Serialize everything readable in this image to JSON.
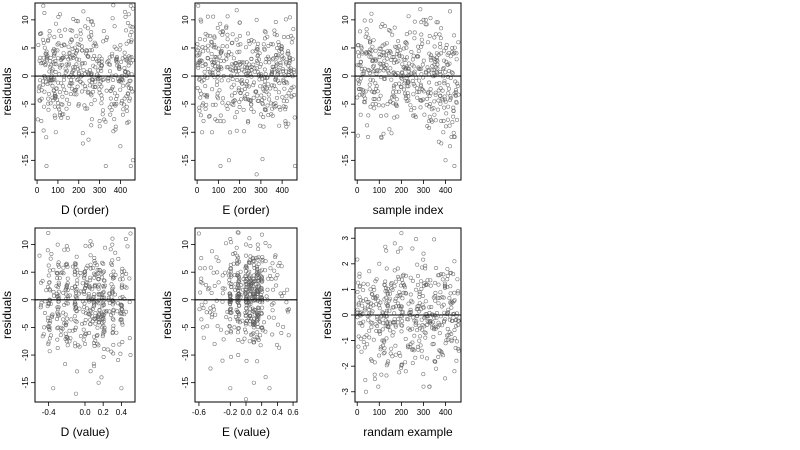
{
  "chart_data": [
    {
      "type": "scatter",
      "xlabel": "D (order)",
      "ylabel": "residuals",
      "xlim": [
        -10,
        470
      ],
      "ylim": [
        -18.5,
        13
      ],
      "xticks": [
        0,
        100,
        200,
        300,
        400
      ],
      "yticks": [
        -15,
        -10,
        -5,
        0,
        5,
        10
      ],
      "hline": 0,
      "n_points": 460,
      "points": [
        [
          30,
          12.5
        ],
        [
          15,
          7.5
        ],
        [
          60,
          8.0
        ],
        [
          110,
          11.0
        ],
        [
          160,
          6.0
        ],
        [
          210,
          6.5
        ],
        [
          250,
          7.0
        ],
        [
          320,
          8.0
        ],
        [
          400,
          5.5
        ],
        [
          440,
          11.0
        ],
        [
          450,
          12.5
        ],
        [
          460,
          12.0
        ],
        [
          20,
          -8.0
        ],
        [
          45,
          -16.0
        ],
        [
          55,
          -6.0
        ],
        [
          90,
          -10.0
        ],
        [
          110,
          -7.0
        ],
        [
          140,
          -3.0
        ],
        [
          200,
          -5.0
        ],
        [
          220,
          -12.0
        ],
        [
          260,
          -5.0
        ],
        [
          300,
          -8.0
        ],
        [
          330,
          -16.0
        ],
        [
          370,
          -5.0
        ],
        [
          400,
          -12.5
        ],
        [
          420,
          -4.0
        ],
        [
          450,
          -16.0
        ],
        [
          460,
          -15.0
        ],
        [
          80,
          -2.5
        ],
        [
          150,
          3.0
        ],
        [
          300,
          3.5
        ],
        [
          350,
          2.0
        ]
      ]
    },
    {
      "type": "scatter",
      "xlabel": "E (order)",
      "ylabel": "residuals",
      "xlim": [
        -10,
        470
      ],
      "ylim": [
        -18.5,
        13
      ],
      "xticks": [
        0,
        100,
        200,
        300,
        400
      ],
      "yticks": [
        -15,
        -10,
        -5,
        0,
        5,
        10
      ],
      "hline": 0,
      "n_points": 460,
      "points": [
        [
          5,
          12.5
        ],
        [
          40,
          7.5
        ],
        [
          70,
          6.0
        ],
        [
          120,
          8.0
        ],
        [
          200,
          9.5
        ],
        [
          280,
          10.0
        ],
        [
          330,
          7.0
        ],
        [
          400,
          3.5
        ],
        [
          430,
          4.0
        ],
        [
          450,
          3.0
        ],
        [
          30,
          -8.0
        ],
        [
          70,
          -10.0
        ],
        [
          110,
          -16.0
        ],
        [
          150,
          -15.0
        ],
        [
          200,
          -5.5
        ],
        [
          240,
          -8.0
        ],
        [
          280,
          -17.5
        ],
        [
          320,
          -6.0
        ],
        [
          360,
          -5.0
        ],
        [
          420,
          -9.0
        ],
        [
          460,
          -16.0
        ],
        [
          100,
          0.5
        ],
        [
          200,
          2.5
        ],
        [
          300,
          0.0
        ]
      ]
    },
    {
      "type": "scatter",
      "xlabel": "sample index",
      "ylabel": "residuals",
      "xlim": [
        -10,
        470
      ],
      "ylim": [
        -18.5,
        13
      ],
      "xticks": [
        0,
        100,
        200,
        300,
        400
      ],
      "yticks": [
        -15,
        -10,
        -5,
        0,
        5,
        10
      ],
      "hline": 0,
      "n_points": 460,
      "points": [
        [
          20,
          5.0
        ],
        [
          40,
          4.0
        ],
        [
          80,
          3.0
        ],
        [
          150,
          8.0
        ],
        [
          220,
          6.0
        ],
        [
          300,
          10.0
        ],
        [
          380,
          8.5
        ],
        [
          420,
          11.5
        ],
        [
          450,
          3.0
        ],
        [
          30,
          -3.5
        ],
        [
          50,
          -7.0
        ],
        [
          70,
          -5.0
        ],
        [
          110,
          -11.0
        ],
        [
          150,
          -4.5
        ],
        [
          200,
          -2.0
        ],
        [
          260,
          -7.0
        ],
        [
          330,
          -5.0
        ],
        [
          380,
          -8.0
        ],
        [
          390,
          -10.0
        ],
        [
          400,
          -15.0
        ],
        [
          420,
          -12.5
        ],
        [
          440,
          -16.0
        ],
        [
          30,
          0.5
        ],
        [
          120,
          1.0
        ],
        [
          250,
          2.0
        ],
        [
          350,
          0.5
        ]
      ]
    },
    {
      "type": "scatter",
      "xlabel": "D (value)",
      "ylabel": "residuals",
      "xlim": [
        -0.55,
        0.55
      ],
      "ylim": [
        -18.5,
        13
      ],
      "xticks": [
        -0.4,
        0.0,
        0.2,
        0.4
      ],
      "xticklabels": [
        "-0.4",
        "0.0",
        "0.2",
        "0.4"
      ],
      "yticks": [
        -15,
        -10,
        -5,
        0,
        5,
        10
      ],
      "hline": 0,
      "n_points": 460,
      "points": [
        [
          -0.5,
          8.0
        ],
        [
          -0.3,
          10.0
        ],
        [
          -0.25,
          5.0
        ],
        [
          -0.1,
          6.5
        ],
        [
          0.0,
          5.0
        ],
        [
          0.1,
          4.0
        ],
        [
          0.2,
          6.5
        ],
        [
          0.3,
          10.0
        ],
        [
          0.45,
          11.0
        ],
        [
          0.5,
          12.0
        ],
        [
          -0.45,
          -5.0
        ],
        [
          -0.35,
          -16.0
        ],
        [
          -0.2,
          -7.5
        ],
        [
          -0.1,
          -17.0
        ],
        [
          0.0,
          -8.0
        ],
        [
          0.1,
          -12.0
        ],
        [
          0.15,
          -15.0
        ],
        [
          0.25,
          -9.0
        ],
        [
          0.4,
          -16.0
        ],
        [
          0.5,
          -10.0
        ],
        [
          -0.05,
          1.5
        ],
        [
          0.05,
          2.5
        ],
        [
          0.1,
          0.5
        ],
        [
          0.15,
          2.0
        ],
        [
          0.2,
          -1.0
        ]
      ]
    },
    {
      "type": "scatter",
      "xlabel": "E (value)",
      "ylabel": "residuals",
      "xlim": [
        -0.65,
        0.65
      ],
      "ylim": [
        -18.5,
        13
      ],
      "xticks": [
        -0.6,
        -0.2,
        0.0,
        0.2,
        0.4,
        0.6
      ],
      "xticklabels": [
        "-0.6",
        "-0.2",
        "0.0",
        "0.2",
        "0.4",
        "0.6"
      ],
      "yticks": [
        -15,
        -10,
        -5,
        0,
        5,
        10
      ],
      "hline": 0,
      "n_points": 460,
      "points": [
        [
          -0.6,
          12.0
        ],
        [
          -0.35,
          7.0
        ],
        [
          -0.2,
          11.0
        ],
        [
          0.0,
          8.0
        ],
        [
          0.15,
          10.0
        ],
        [
          0.25,
          7.0
        ],
        [
          0.4,
          4.5
        ],
        [
          -0.55,
          -5.0
        ],
        [
          -0.4,
          -8.0
        ],
        [
          -0.3,
          -11.0
        ],
        [
          -0.2,
          -16.0
        ],
        [
          -0.1,
          -10.0
        ],
        [
          0.0,
          -18.0
        ],
        [
          0.1,
          -15.0
        ],
        [
          0.25,
          -14.0
        ],
        [
          0.3,
          -16.0
        ],
        [
          0.45,
          -6.0
        ],
        [
          -0.1,
          1.0
        ],
        [
          0.0,
          0.5
        ],
        [
          0.05,
          2.0
        ],
        [
          0.15,
          1.5
        ],
        [
          0.2,
          -2.5
        ],
        [
          0.2,
          4.0
        ]
      ]
    },
    {
      "type": "scatter",
      "xlabel": "randam example",
      "ylabel": "residuals",
      "xlim": [
        -10,
        470
      ],
      "ylim": [
        -3.4,
        3.4
      ],
      "xticks": [
        0,
        100,
        200,
        300,
        400
      ],
      "yticks": [
        -3,
        -2,
        -1,
        0,
        1,
        2,
        3
      ],
      "hline": 0,
      "n_points": 460,
      "points": [
        [
          200,
          3.2
        ],
        [
          170,
          2.8
        ],
        [
          100,
          2.0
        ],
        [
          300,
          2.4
        ],
        [
          250,
          2.6
        ],
        [
          440,
          2.1
        ],
        [
          10,
          1.5
        ],
        [
          60,
          1.0
        ],
        [
          380,
          1.6
        ],
        [
          120,
          -1.5
        ],
        [
          80,
          -2.5
        ],
        [
          40,
          -3.0
        ],
        [
          220,
          -2.2
        ],
        [
          300,
          -2.8
        ],
        [
          350,
          -1.8
        ],
        [
          440,
          -2.2
        ],
        [
          460,
          -1.4
        ],
        [
          160,
          -0.8
        ],
        [
          250,
          0.5
        ],
        [
          330,
          -0.3
        ]
      ]
    }
  ]
}
